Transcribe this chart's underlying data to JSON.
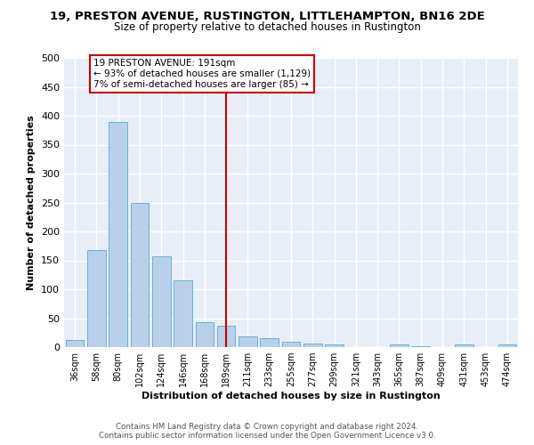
{
  "title": "19, PRESTON AVENUE, RUSTINGTON, LITTLEHAMPTON, BN16 2DE",
  "subtitle": "Size of property relative to detached houses in Rustington",
  "xlabel": "Distribution of detached houses by size in Rustington",
  "ylabel": "Number of detached properties",
  "categories": [
    "36sqm",
    "58sqm",
    "80sqm",
    "102sqm",
    "124sqm",
    "146sqm",
    "168sqm",
    "189sqm",
    "211sqm",
    "233sqm",
    "255sqm",
    "277sqm",
    "299sqm",
    "321sqm",
    "343sqm",
    "365sqm",
    "387sqm",
    "409sqm",
    "431sqm",
    "453sqm",
    "474sqm"
  ],
  "values": [
    13,
    167,
    390,
    249,
    157,
    115,
    43,
    37,
    19,
    15,
    9,
    6,
    5,
    0,
    0,
    4,
    1,
    0,
    4,
    0,
    4
  ],
  "bar_color": "#b8d0ea",
  "bar_edge_color": "#6baed6",
  "vline_color": "#cc0000",
  "vline_x": 7.0,
  "annotation_title": "19 PRESTON AVENUE: 191sqm",
  "annotation_line1": "← 93% of detached houses are smaller (1,129)",
  "annotation_line2": "7% of semi-detached houses are larger (85) →",
  "annotation_box_edgecolor": "#cc0000",
  "ylim": [
    0,
    500
  ],
  "yticks": [
    0,
    50,
    100,
    150,
    200,
    250,
    300,
    350,
    400,
    450,
    500
  ],
  "footer_line1": "Contains HM Land Registry data © Crown copyright and database right 2024.",
  "footer_line2": "Contains public sector information licensed under the Open Government Licence v3.0.",
  "background_color": "#e8eef8",
  "grid_color": "#ffffff"
}
